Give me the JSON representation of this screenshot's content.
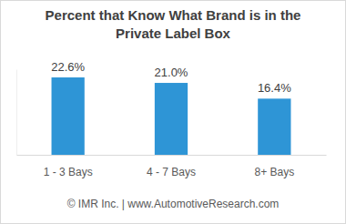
{
  "chart_data": {
    "type": "bar",
    "title": "Percent that Know What Brand is in the Private Label Box",
    "categories": [
      "1 - 3 Bays",
      "4 - 7 Bays",
      "8+ Bays"
    ],
    "values": [
      22.6,
      21.0,
      16.4
    ],
    "value_labels": [
      "22.6%",
      "21.0%",
      "16.4%"
    ],
    "color": "#2e95d6",
    "ylim": [
      0,
      25
    ],
    "yticks": [],
    "data_labels": true,
    "tick_labels": "x",
    "grid": false,
    "annotations": [
      "© IMR Inc. | www.AutomotiveResearch.com"
    ]
  }
}
